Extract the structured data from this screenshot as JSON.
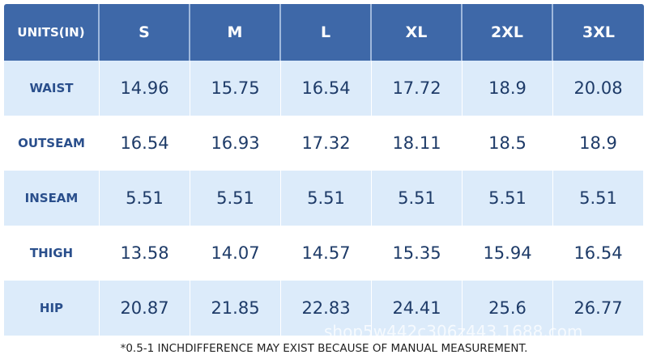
{
  "table": {
    "header": [
      "UNITS(IN)",
      "S",
      "M",
      "L",
      "XL",
      "2XL",
      "3XL"
    ],
    "rows": [
      [
        "WAIST",
        "14.96",
        "15.75",
        "16.54",
        "17.72",
        "18.9",
        "20.08"
      ],
      [
        "OUTSEAM",
        "16.54",
        "16.93",
        "17.32",
        "18.11",
        "18.5",
        "18.9"
      ],
      [
        "INSEAM",
        "5.51",
        "5.51",
        "5.51",
        "5.51",
        "5.51",
        "5.51"
      ],
      [
        "THIGH",
        "13.58",
        "14.07",
        "14.57",
        "15.35",
        "15.94",
        "16.54"
      ],
      [
        "HIP",
        "20.87",
        "21.85",
        "22.83",
        "24.41",
        "25.6",
        "26.77"
      ]
    ]
  },
  "footnote": "*0.5-1 INCHDIFFERENCE MAY EXIST BECAUSE OF MANUAL MEASUREMENT.",
  "watermark": "shop5w442c306z443.1688.com"
}
